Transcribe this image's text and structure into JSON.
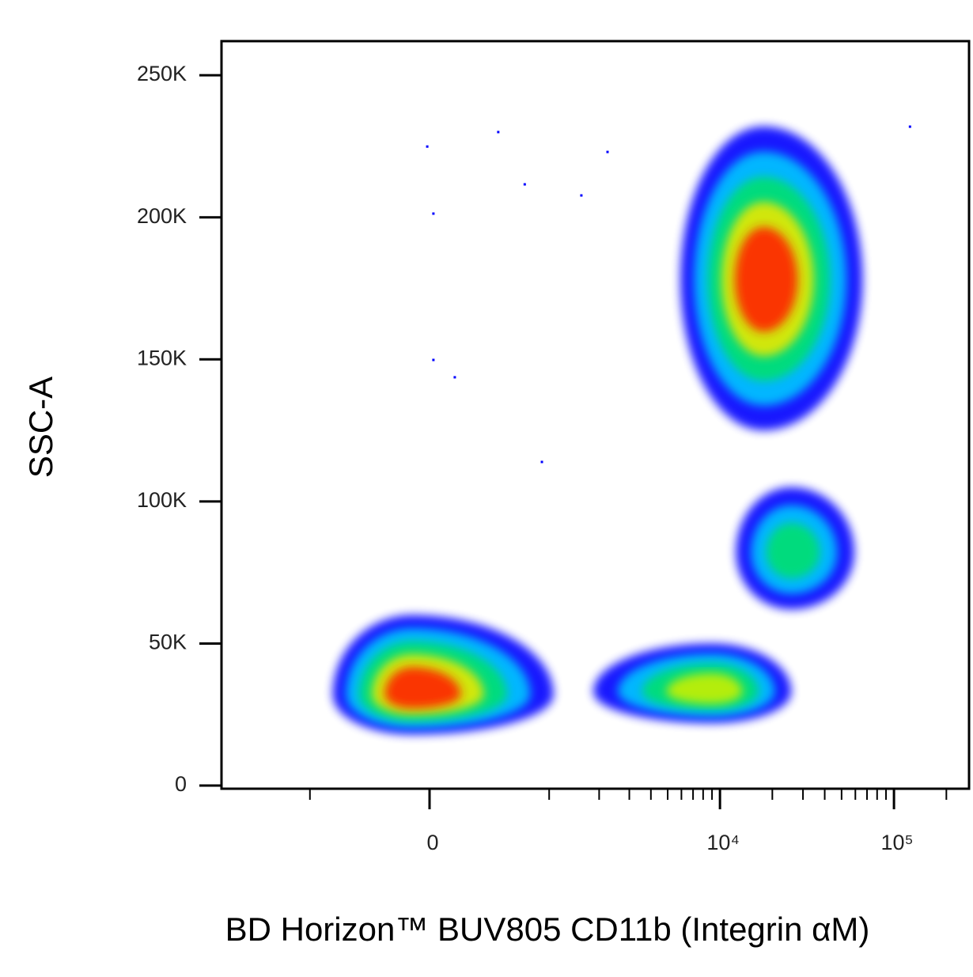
{
  "chart_data": {
    "type": "density",
    "x_label": "BD Horizon™ BUV805 CD11b (Integrin αM)",
    "y_label": "SSC-A",
    "xscale": "biexponential",
    "xlim": [
      -3350,
      270000
    ],
    "ylim": [
      -1100,
      262000
    ],
    "xticks": [
      {
        "value": 0,
        "label": "0"
      },
      {
        "value": 10000,
        "label": "10⁴"
      },
      {
        "value": 100000,
        "label": "10⁵"
      }
    ],
    "xminor_ticks": [
      -1000,
      1000,
      2000,
      3000,
      4000,
      5000,
      6000,
      7000,
      8000,
      9000,
      20000,
      30000,
      40000,
      50000,
      60000,
      70000,
      80000,
      90000,
      200000
    ],
    "yticks": [
      {
        "value": 0,
        "label": "0"
      },
      {
        "value": 50000,
        "label": "50K"
      },
      {
        "value": 100000,
        "label": "100K"
      },
      {
        "value": 150000,
        "label": "150K"
      },
      {
        "value": 200000,
        "label": "200K"
      },
      {
        "value": 250000,
        "label": "250K"
      }
    ],
    "clusters": [
      {
        "x": [
          -712,
          1064
        ],
        "y": [
          18000,
          60000
        ],
        "x_center": -100,
        "y_center": 32000,
        "colors": [
          "#0000ff",
          "#00c8ff",
          "#00e070",
          "#e8e800",
          "#ff2000"
        ]
      },
      {
        "x": [
          1850,
          25700
        ],
        "y": [
          22000,
          50000
        ],
        "x_center": 9000,
        "y_center": 33000,
        "colors": [
          "#0000ff",
          "#00c8ff",
          "#00e070",
          "#c8f000"
        ]
      },
      {
        "x": [
          12350,
          59200
        ],
        "y": [
          62000,
          105000
        ],
        "x_center": 25700,
        "y_center": 82000,
        "colors": [
          "#0000ff",
          "#00c8ff",
          "#00e070"
        ]
      },
      {
        "x": [
          5920,
          66000
        ],
        "y": [
          125000,
          232000
        ],
        "x_center": 17800,
        "y_center": 178000,
        "colors": [
          "#0000ff",
          "#00c8ff",
          "#00e070",
          "#e8e800",
          "#ff2000"
        ]
      }
    ],
    "points": {
      "color": "#0000ff",
      "x": [
        -13,
        22,
        22,
        146,
        446,
        695,
        900,
        1570,
        2240,
        123600
      ],
      "y": [
        224900,
        201300,
        149800,
        143700,
        230000,
        211600,
        113900,
        207700,
        223000,
        231900
      ]
    }
  }
}
